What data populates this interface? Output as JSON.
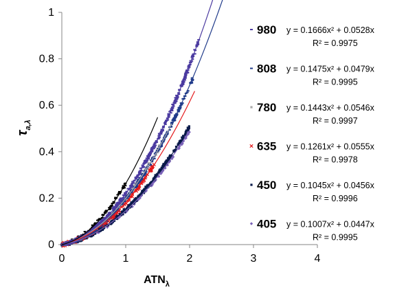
{
  "chart_data": {
    "type": "scatter",
    "xlabel": "ATN",
    "xlabel_subscript": "λ",
    "ylabel": "τ",
    "ylabel_subscript": "a,λ",
    "xlim": [
      0,
      4
    ],
    "ylim": [
      0,
      1
    ],
    "x_ticks": [
      "0",
      "1",
      "2",
      "3",
      "4"
    ],
    "y_ticks": [
      "0",
      "0.2",
      "0.4",
      "0.6",
      "0.8",
      "1"
    ],
    "grid": false,
    "legend_position": "right",
    "series": [
      {
        "name": "980",
        "color": "#4b3aa0",
        "marker": "dash",
        "equation": "y = 0.1666x² + 0.0528x",
        "r2": "R² = 0.9975",
        "a": 0.1666,
        "b": 0.0528,
        "x_data_max": 2.15,
        "x_fit_max": 2.83,
        "density": 4
      },
      {
        "name": "808",
        "color": "#1f3a8a",
        "marker": "dash",
        "equation": "y = 0.1475x² + 0.0479x",
        "r2": "R² = 0.9995",
        "a": 0.1475,
        "b": 0.0479,
        "x_data_max": 2.05,
        "x_fit_max": 2.7,
        "density": 3
      },
      {
        "name": "780",
        "color": "#a9a9a9",
        "marker": "square",
        "equation": "y = 0.1443x² + 0.0546x",
        "r2": "R² = 0.9997",
        "a": 0.1443,
        "b": 0.0546,
        "x_data_max": 1.55,
        "x_fit_max": 1.72,
        "density": 2
      },
      {
        "name": "635",
        "color": "#e41a1c",
        "marker": "x",
        "equation": "y = 0.1261x² + 0.0555x",
        "r2": "R² = 0.9978",
        "a": 0.1261,
        "b": 0.0555,
        "x_data_max": 1.45,
        "x_fit_max": 2.08,
        "density": 2
      },
      {
        "name": "450",
        "color": "#0a1a4a",
        "marker": "square",
        "equation": "y = 0.1045x² + 0.0456x",
        "r2": "R² = 0.9996",
        "a": 0.1045,
        "b": 0.0456,
        "x_data_max": 2.0,
        "x_fit_max": 2.0,
        "density": 3
      },
      {
        "name": "405",
        "color": "#7a62b8",
        "marker": "diamond",
        "equation": "y = 0.1007x² + 0.0447x",
        "r2": "R² = 0.9995",
        "a": 0.1007,
        "b": 0.0447,
        "x_data_max": 2.0,
        "x_fit_max": 2.0,
        "density": 2
      },
      {
        "name": "",
        "color": "#000000",
        "marker": "dash",
        "equation": "",
        "r2": "",
        "a": 0.205,
        "b": 0.058,
        "x_data_max": 1.0,
        "x_fit_max": 1.5,
        "density": 2
      }
    ]
  }
}
